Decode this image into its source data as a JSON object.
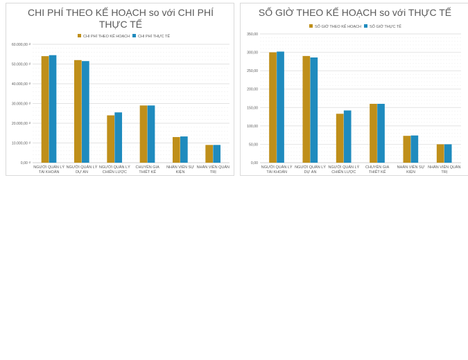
{
  "chart_data": [
    {
      "type": "bar",
      "title_lines": [
        "CHI PHÍ THEO KẾ HOẠCH so với CHI PHÍ",
        "THỰC TẾ"
      ],
      "categories": [
        [
          "NGƯỜI QUẢN LÝ",
          "TÀI KHOẢN"
        ],
        [
          "NGƯỜI QUẢN LÝ",
          "DỰ ÁN"
        ],
        [
          "NGƯỜI QUẢN LÝ",
          "CHIẾN LƯỢC"
        ],
        [
          "CHUYÊN GIA",
          "THIẾT KẾ"
        ],
        [
          "NHÂN VIÊN SỰ",
          "KIỆN"
        ],
        [
          "NHÂN VIÊN QUẢN",
          "TRỊ"
        ]
      ],
      "series": [
        {
          "name": "CHI PHÍ THEO KẾ HOẠCH",
          "color": "#BF8F1A",
          "values": [
            54000,
            52000,
            24000,
            29000,
            13000,
            9000
          ]
        },
        {
          "name": "CHI PHÍ THỰC TẾ",
          "color": "#1F8BBE",
          "values": [
            54500,
            51500,
            25500,
            29000,
            13300,
            9000
          ]
        }
      ],
      "yticks": [
        "0,00 ₫",
        "10.000,00 ₫",
        "20.000,00 ₫",
        "30.000,00 ₫",
        "40.000,00 ₫",
        "50.000,00 ₫",
        "60.000,00 ₫"
      ],
      "ylim": [
        0,
        60000
      ],
      "grid": true,
      "legend": "top"
    },
    {
      "type": "bar",
      "title_lines": [
        "SỐ GIỜ THEO KẾ HOẠCH so với THỰC TẾ"
      ],
      "categories": [
        [
          "NGƯỜI QUẢN LÝ",
          "TÀI KHOẢN"
        ],
        [
          "NGƯỜI QUẢN LÝ",
          "DỰ ÁN"
        ],
        [
          "NGƯỜI QUẢN LÝ",
          "CHIẾN LƯỢC"
        ],
        [
          "CHUYÊN GIA",
          "THIẾT KẾ"
        ],
        [
          "NHÂN VIÊN SỰ",
          "KIỆN"
        ],
        [
          "NHÂN VIÊN QUẢN",
          "TRỊ"
        ]
      ],
      "series": [
        {
          "name": "SỐ GIỜ THEO KẾ HOẠCH",
          "color": "#BF8F1A",
          "values": [
            300,
            290,
            133,
            160,
            73,
            50
          ]
        },
        {
          "name": "SỐ GIỜ THỰC TẾ",
          "color": "#1F8BBE",
          "values": [
            302,
            286,
            142,
            160,
            74,
            50
          ]
        }
      ],
      "yticks": [
        "0,00",
        "50,00",
        "100,00",
        "150,00",
        "200,00",
        "250,00",
        "300,00",
        "350,00"
      ],
      "ylim": [
        0,
        350
      ],
      "grid": true,
      "legend": "top"
    }
  ]
}
